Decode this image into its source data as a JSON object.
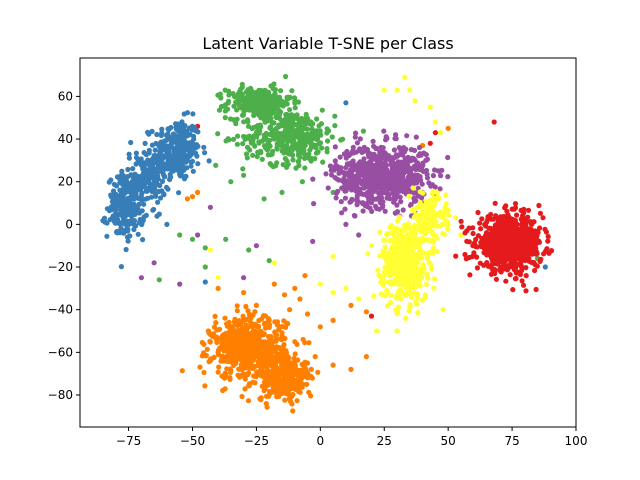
{
  "chart_data": {
    "type": "scatter",
    "title": "Latent Variable T-SNE per Class",
    "xlabel": "",
    "ylabel": "",
    "xlim": [
      -94,
      100
    ],
    "ylim": [
      -95,
      78
    ],
    "xticks": [
      -75,
      -50,
      -25,
      0,
      25,
      50,
      75,
      100
    ],
    "yticks": [
      -80,
      -60,
      -40,
      -20,
      0,
      20,
      40,
      60
    ],
    "xtick_labels": [
      "−75",
      "−50",
      "−25",
      "0",
      "25",
      "50",
      "75",
      "100"
    ],
    "ytick_labels": [
      "−80",
      "−60",
      "−40",
      "−20",
      "0",
      "20",
      "40",
      "60"
    ],
    "grid": false,
    "legend": "none",
    "series": [
      {
        "color": "#377eb8",
        "clusters": [
          {
            "cx": -56,
            "cy": 35,
            "sx": 5,
            "sy": 8,
            "n": 260
          },
          {
            "cx": -68,
            "cy": 22,
            "sx": 5,
            "sy": 7,
            "n": 180
          },
          {
            "cx": -76,
            "cy": 8,
            "sx": 4,
            "sy": 8,
            "n": 200
          }
        ]
      },
      {
        "color": "#4daf4a",
        "clusters": [
          {
            "cx": -24,
            "cy": 57,
            "sx": 7,
            "sy": 4,
            "n": 260
          },
          {
            "cx": -12,
            "cy": 41,
            "sx": 10,
            "sy": 7,
            "n": 380
          }
        ]
      },
      {
        "color": "#984ea3",
        "clusters": [
          {
            "cx": 24,
            "cy": 23,
            "sx": 10,
            "sy": 8,
            "n": 700
          }
        ]
      },
      {
        "color": "#ffff33",
        "clusters": [
          {
            "cx": 33,
            "cy": -18,
            "sx": 5,
            "sy": 10,
            "n": 480
          },
          {
            "cx": 42,
            "cy": 2,
            "sx": 4,
            "sy": 7,
            "n": 140
          }
        ]
      },
      {
        "color": "#e41a1c",
        "clusters": [
          {
            "cx": 74,
            "cy": -9,
            "sx": 7,
            "sy": 7,
            "n": 750
          }
        ]
      },
      {
        "color": "#ff7f00",
        "clusters": [
          {
            "cx": -28,
            "cy": -58,
            "sx": 8,
            "sy": 8,
            "n": 600
          },
          {
            "cx": -14,
            "cy": -72,
            "sx": 6,
            "sy": 6,
            "n": 250
          }
        ]
      }
    ],
    "outliers": [
      {
        "color": "#ffff33",
        "points": [
          [
            33,
            69
          ],
          [
            25,
            63
          ],
          [
            30,
            63
          ],
          [
            35,
            63
          ],
          [
            37,
            58
          ],
          [
            43,
            55
          ],
          [
            45,
            48
          ],
          [
            47,
            43
          ],
          [
            40,
            25
          ],
          [
            10,
            -30
          ],
          [
            15,
            -35
          ],
          [
            0,
            -28
          ],
          [
            5,
            -32
          ],
          [
            48,
            -40
          ],
          [
            20,
            -10
          ],
          [
            55,
            -5
          ],
          [
            50,
            0
          ],
          [
            45,
            15
          ],
          [
            22,
            -50
          ],
          [
            30,
            -50
          ],
          [
            -45,
            -20
          ],
          [
            -40,
            -25
          ],
          [
            -43,
            -12
          ],
          [
            -18,
            -18
          ],
          [
            5,
            -15
          ]
        ]
      },
      {
        "color": "#e41a1c",
        "points": [
          [
            68,
            48
          ],
          [
            45,
            43
          ],
          [
            43,
            38
          ],
          [
            60,
            -10
          ],
          [
            20,
            -43
          ],
          [
            -48,
            46
          ]
        ]
      },
      {
        "color": "#4daf4a",
        "points": [
          [
            -63,
            -26
          ],
          [
            -45,
            -20
          ],
          [
            -37,
            -7
          ],
          [
            -28,
            -12
          ],
          [
            -20,
            -17
          ],
          [
            -30,
            23
          ],
          [
            -35,
            20
          ],
          [
            -45,
            -11
          ],
          [
            -50,
            -7
          ],
          [
            -55,
            -5
          ],
          [
            70,
            -13
          ],
          [
            78,
            -4
          ],
          [
            82,
            -12
          ],
          [
            85,
            -16
          ],
          [
            5,
            15
          ],
          [
            -7,
            20
          ],
          [
            -15,
            15
          ],
          [
            -22,
            12
          ],
          [
            -55,
            30
          ]
        ]
      },
      {
        "color": "#984ea3",
        "points": [
          [
            -65,
            -18
          ],
          [
            -70,
            -25
          ],
          [
            -55,
            -28
          ],
          [
            -48,
            -5
          ],
          [
            -43,
            8
          ],
          [
            -30,
            -25
          ],
          [
            -3,
            -8
          ],
          [
            10,
            0
          ],
          [
            15,
            -5
          ],
          [
            40,
            10
          ],
          [
            45,
            12
          ],
          [
            -25,
            -10
          ]
        ]
      },
      {
        "color": "#377eb8",
        "points": [
          [
            10,
            57
          ],
          [
            -45,
            -27
          ],
          [
            -60,
            0
          ],
          [
            88,
            -20
          ]
        ]
      },
      {
        "color": "#ff7f00",
        "points": [
          [
            -52,
            12
          ],
          [
            -50,
            13
          ],
          [
            -48,
            15
          ],
          [
            -30,
            -32
          ],
          [
            -25,
            -38
          ],
          [
            -20,
            -45
          ],
          [
            -12,
            -40
          ],
          [
            -8,
            -35
          ],
          [
            -5,
            -42
          ],
          [
            0,
            -48
          ],
          [
            5,
            -45
          ],
          [
            12,
            -38
          ],
          [
            18,
            -41
          ],
          [
            -2,
            -62
          ],
          [
            5,
            -66
          ],
          [
            -5,
            -65
          ],
          [
            18,
            -62
          ],
          [
            12,
            -68
          ],
          [
            -10,
            -55
          ],
          [
            -15,
            -52
          ],
          [
            -40,
            -30
          ],
          [
            -18,
            -28
          ],
          [
            -10,
            -30
          ],
          [
            -6,
            -24
          ],
          [
            -14,
            -33
          ],
          [
            50,
            45
          ],
          [
            40,
            37
          ],
          [
            -22,
            -78
          ],
          [
            -40,
            -60
          ]
        ]
      }
    ]
  }
}
